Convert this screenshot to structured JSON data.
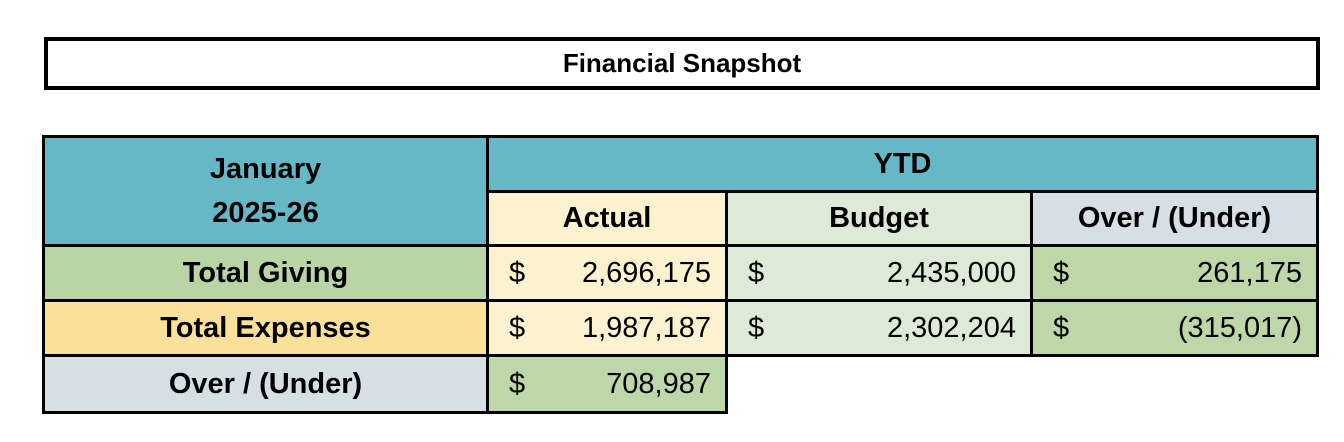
{
  "title": "Financial Snapshot",
  "table": {
    "corner": [
      "January",
      "2025-26"
    ],
    "group_header": "YTD",
    "columns": [
      "Actual",
      "Budget",
      "Over / (Under)"
    ],
    "rows": [
      {
        "label": "Total Giving",
        "cells": [
          {
            "currency": "$",
            "amount": "2,696,175"
          },
          {
            "currency": "$",
            "amount": "2,435,000"
          },
          {
            "currency": "$",
            "amount": "261,175"
          }
        ]
      },
      {
        "label": "Total Expenses",
        "cells": [
          {
            "currency": "$",
            "amount": "1,987,187"
          },
          {
            "currency": "$",
            "amount": "2,302,204"
          },
          {
            "currency": "$",
            "amount": "(315,017)"
          }
        ]
      },
      {
        "label": "Over / (Under)",
        "cells": [
          {
            "currency": "$",
            "amount": "708,987"
          }
        ]
      }
    ]
  }
}
